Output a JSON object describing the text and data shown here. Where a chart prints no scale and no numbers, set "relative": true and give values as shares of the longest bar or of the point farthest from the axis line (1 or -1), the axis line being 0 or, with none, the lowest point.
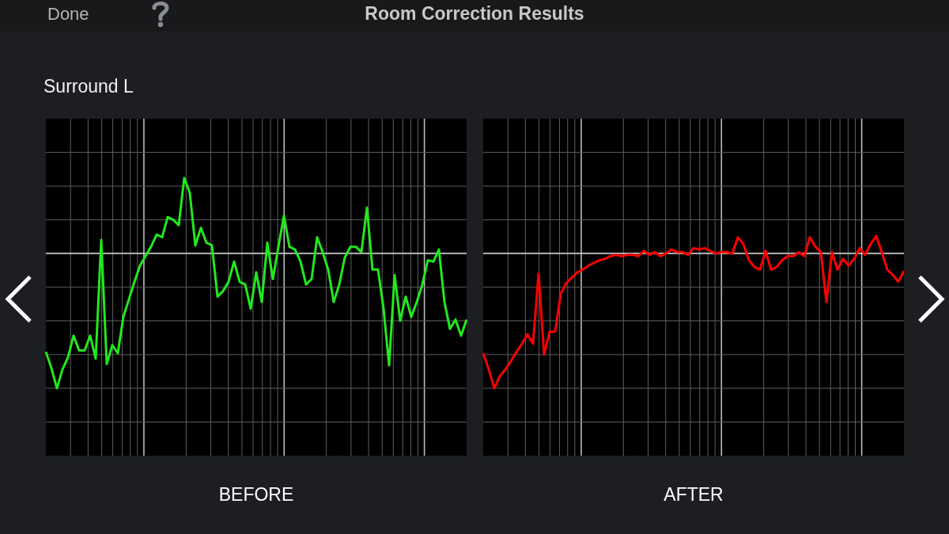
{
  "chart_data": [
    {
      "type": "line",
      "title": "Room Correction Results",
      "subtitle": "Surround L",
      "annotations": [
        "Done"
      ],
      "xlabel": "BEFORE",
      "relative": true,
      "grid": true,
      "categories": [
        null,
        null,
        null,
        null,
        null,
        null,
        null,
        null,
        null,
        null,
        null,
        null,
        null,
        null,
        null,
        null,
        null,
        null,
        null,
        null,
        null,
        null,
        null,
        null,
        null,
        null,
        null,
        null,
        null,
        null,
        null,
        null,
        null,
        null,
        null,
        null,
        null,
        null,
        null,
        null,
        null,
        null,
        null,
        null,
        null,
        null,
        null,
        null,
        null,
        null,
        null,
        null,
        null,
        null,
        null,
        null,
        null,
        null,
        null,
        null,
        null,
        null,
        null,
        null,
        null,
        null,
        null,
        null,
        null,
        null,
        null,
        null,
        null,
        null,
        null,
        null,
        null
      ],
      "series": [
        {
          "color": "#22e81e",
          "values": [
            -0.73,
            -0.85,
            -1,
            -0.86,
            -0.77,
            -0.61,
            -0.72,
            -0.72,
            -0.61,
            -0.78,
            0.1,
            -0.82,
            -0.68,
            -0.74,
            -0.47,
            -0.34,
            -0.21,
            -0.09,
            -0.02,
            0.05,
            0.14,
            0.12,
            0.27,
            0.25,
            0.21,
            0.56,
            0.45,
            0.06,
            0.19,
            0.08,
            0.06,
            -0.32,
            -0.28,
            -0.21,
            -0.06,
            -0.21,
            -0.23,
            -0.41,
            -0.14,
            -0.36,
            0.08,
            -0.19,
            0.05,
            0.28,
            0.05,
            0.03,
            -0.06,
            -0.23,
            -0.19,
            0.12,
            0.01,
            -0.12,
            -0.36,
            -0.23,
            -0.03,
            0.05,
            0.05,
            0.01,
            0.34,
            -0.12,
            -0.12,
            -0.41,
            -0.83,
            -0.16,
            -0.5,
            -0.32,
            -0.47,
            -0.36,
            -0.23,
            -0.05,
            -0.06,
            0.03,
            -0.36,
            -0.56,
            -0.49,
            -0.61,
            -0.49
          ]
        }
      ]
    },
    {
      "type": "line",
      "xlabel": "AFTER",
      "relative": true,
      "grid": true,
      "categories": [
        null,
        null,
        null,
        null,
        null,
        null,
        null,
        null,
        null,
        null,
        null,
        null,
        null,
        null,
        null,
        null,
        null,
        null,
        null,
        null,
        null,
        null,
        null,
        null,
        null,
        null,
        null,
        null,
        null,
        null,
        null,
        null,
        null,
        null,
        null,
        null,
        null,
        null,
        null,
        null,
        null,
        null,
        null,
        null,
        null,
        null,
        null,
        null,
        null,
        null,
        null,
        null,
        null,
        null,
        null,
        null,
        null,
        null,
        null,
        null,
        null,
        null,
        null,
        null,
        null,
        null,
        null,
        null,
        null,
        null,
        null,
        null,
        null,
        null,
        null,
        null,
        null
      ],
      "series": [
        {
          "color": "#ff0000",
          "values": [
            -0.74,
            -0.86,
            -1,
            -0.91,
            -0.86,
            -0.8,
            -0.73,
            -0.67,
            -0.6,
            -0.67,
            -0.15,
            -0.75,
            -0.58,
            -0.58,
            -0.3,
            -0.22,
            -0.18,
            -0.14,
            -0.12,
            -0.09,
            -0.07,
            -0.05,
            -0.04,
            -0.02,
            -0.01,
            -0.02,
            -0.01,
            -0.01,
            -0.02,
            0.02,
            -0.01,
            0.01,
            -0.02,
            0,
            0.03,
            0.01,
            0.01,
            -0.01,
            0.04,
            0.03,
            0.04,
            0.02,
            0,
            0.01,
            0.01,
            0,
            0.12,
            0.07,
            -0.05,
            -0.1,
            -0.12,
            0.02,
            -0.12,
            -0.1,
            -0.05,
            -0.02,
            -0.02,
            0.01,
            -0.02,
            0.12,
            0.05,
            0.01,
            -0.36,
            0.01,
            -0.12,
            -0.04,
            -0.09,
            -0.04,
            0.04,
            -0.01,
            0.07,
            0.13,
            0.01,
            -0.12,
            -0.16,
            -0.21,
            -0.13
          ]
        }
      ]
    }
  ]
}
